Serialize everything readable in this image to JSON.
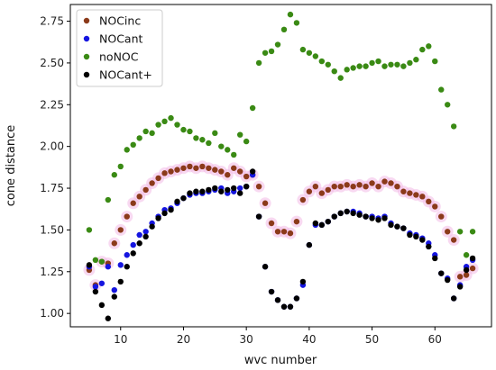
{
  "chart_data": {
    "type": "scatter",
    "xlabel": "wvc number",
    "ylabel": "cone distance",
    "xlim": [
      2.0,
      69.0
    ],
    "ylim": [
      0.92,
      2.85
    ],
    "xticks": [
      10,
      20,
      30,
      40,
      50,
      60
    ],
    "yticks": [
      1.0,
      1.25,
      1.5,
      1.75,
      2.0,
      2.25,
      2.5,
      2.75
    ],
    "ytick_labels": [
      "1.00",
      "1.25",
      "1.50",
      "1.75",
      "2.00",
      "2.25",
      "2.50",
      "2.75"
    ],
    "grid": false,
    "legend_position": "top-left",
    "series": [
      {
        "name": "NOCinc",
        "color": "#8b3a1a",
        "x": [
          5,
          6,
          7,
          8,
          9,
          10,
          11,
          12,
          13,
          14,
          15,
          16,
          17,
          18,
          19,
          20,
          21,
          22,
          23,
          24,
          25,
          26,
          27,
          28,
          29,
          30,
          31,
          32,
          33,
          34,
          35,
          36,
          37,
          38,
          39,
          40,
          41,
          42,
          43,
          44,
          45,
          46,
          47,
          48,
          49,
          50,
          51,
          52,
          53,
          54,
          55,
          56,
          57,
          58,
          59,
          60,
          61,
          62,
          63,
          64,
          65,
          66
        ],
        "y": [
          1.26,
          1.17,
          1.31,
          1.3,
          1.42,
          1.5,
          1.58,
          1.66,
          1.7,
          1.74,
          1.78,
          1.81,
          1.84,
          1.85,
          1.86,
          1.87,
          1.88,
          1.87,
          1.88,
          1.87,
          1.86,
          1.85,
          1.83,
          1.87,
          1.85,
          1.82,
          1.83,
          1.76,
          1.66,
          1.54,
          1.49,
          1.49,
          1.48,
          1.55,
          1.68,
          1.73,
          1.76,
          1.72,
          1.74,
          1.76,
          1.76,
          1.77,
          1.76,
          1.77,
          1.76,
          1.78,
          1.76,
          1.79,
          1.78,
          1.76,
          1.73,
          1.72,
          1.71,
          1.7,
          1.67,
          1.64,
          1.58,
          1.49,
          1.44,
          1.22,
          1.23,
          1.27
        ]
      },
      {
        "name": "NOCant",
        "color": "#1515e0",
        "x": [
          5,
          6,
          7,
          8,
          9,
          10,
          11,
          12,
          13,
          14,
          15,
          16,
          17,
          18,
          19,
          20,
          21,
          22,
          23,
          24,
          25,
          26,
          27,
          28,
          29,
          30,
          31,
          32,
          33,
          34,
          35,
          36,
          37,
          38,
          39,
          40,
          41,
          42,
          43,
          44,
          45,
          46,
          47,
          48,
          49,
          50,
          51,
          52,
          53,
          54,
          55,
          56,
          57,
          58,
          59,
          60,
          61,
          62,
          63,
          64,
          65,
          66
        ],
        "y": [
          1.28,
          1.16,
          1.18,
          1.28,
          1.14,
          1.29,
          1.35,
          1.41,
          1.47,
          1.49,
          1.54,
          1.58,
          1.62,
          1.63,
          1.66,
          1.69,
          1.71,
          1.72,
          1.72,
          1.73,
          1.74,
          1.75,
          1.72,
          1.73,
          1.75,
          1.76,
          1.83,
          1.58,
          1.28,
          1.13,
          1.08,
          1.04,
          1.04,
          1.09,
          1.17,
          1.41,
          1.53,
          1.53,
          1.55,
          1.58,
          1.6,
          1.61,
          1.61,
          1.6,
          1.58,
          1.58,
          1.57,
          1.58,
          1.54,
          1.52,
          1.51,
          1.48,
          1.47,
          1.45,
          1.42,
          1.35,
          1.24,
          1.21,
          1.09,
          1.17,
          1.28,
          1.32
        ]
      },
      {
        "name": "noNOC",
        "color": "#3a8a14",
        "x": [
          5,
          6,
          7,
          8,
          9,
          10,
          11,
          12,
          13,
          14,
          15,
          16,
          17,
          18,
          19,
          20,
          21,
          22,
          23,
          24,
          25,
          26,
          27,
          28,
          29,
          30,
          31,
          32,
          33,
          34,
          35,
          36,
          37,
          38,
          39,
          40,
          41,
          42,
          43,
          44,
          45,
          46,
          47,
          48,
          49,
          50,
          51,
          52,
          53,
          54,
          55,
          56,
          57,
          58,
          59,
          60,
          61,
          62,
          63,
          64,
          65,
          66
        ],
        "y": [
          1.5,
          1.32,
          1.31,
          1.68,
          1.83,
          1.88,
          1.98,
          2.01,
          2.05,
          2.09,
          2.08,
          2.13,
          2.15,
          2.17,
          2.13,
          2.1,
          2.09,
          2.05,
          2.04,
          2.02,
          2.08,
          2.0,
          1.98,
          1.95,
          2.07,
          2.03,
          2.23,
          2.5,
          2.56,
          2.57,
          2.61,
          2.7,
          2.79,
          2.74,
          2.58,
          2.56,
          2.54,
          2.51,
          2.49,
          2.45,
          2.41,
          2.46,
          2.47,
          2.48,
          2.48,
          2.5,
          2.51,
          2.48,
          2.49,
          2.49,
          2.48,
          2.5,
          2.52,
          2.58,
          2.6,
          2.51,
          2.34,
          2.25,
          2.12,
          1.49,
          1.35,
          1.49
        ]
      },
      {
        "name": "NOCant+",
        "color": "#000000",
        "x": [
          5,
          6,
          7,
          8,
          9,
          10,
          11,
          12,
          13,
          14,
          15,
          16,
          17,
          18,
          19,
          20,
          21,
          22,
          23,
          24,
          25,
          26,
          27,
          28,
          29,
          30,
          31,
          32,
          33,
          34,
          35,
          36,
          37,
          38,
          39,
          40,
          41,
          42,
          43,
          44,
          45,
          46,
          47,
          48,
          49,
          50,
          51,
          52,
          53,
          54,
          55,
          56,
          57,
          58,
          59,
          60,
          61,
          62,
          63,
          64,
          65,
          66
        ],
        "y": [
          1.29,
          1.13,
          1.05,
          0.97,
          1.1,
          1.19,
          1.28,
          1.36,
          1.42,
          1.46,
          1.52,
          1.57,
          1.6,
          1.62,
          1.67,
          1.69,
          1.72,
          1.73,
          1.73,
          1.74,
          1.75,
          1.73,
          1.74,
          1.75,
          1.72,
          1.76,
          1.85,
          1.58,
          1.28,
          1.13,
          1.08,
          1.04,
          1.04,
          1.09,
          1.19,
          1.41,
          1.54,
          1.53,
          1.55,
          1.58,
          1.6,
          1.61,
          1.6,
          1.59,
          1.58,
          1.57,
          1.56,
          1.57,
          1.53,
          1.52,
          1.51,
          1.47,
          1.46,
          1.44,
          1.4,
          1.33,
          1.24,
          1.2,
          1.09,
          1.16,
          1.26,
          1.33
        ]
      }
    ]
  }
}
